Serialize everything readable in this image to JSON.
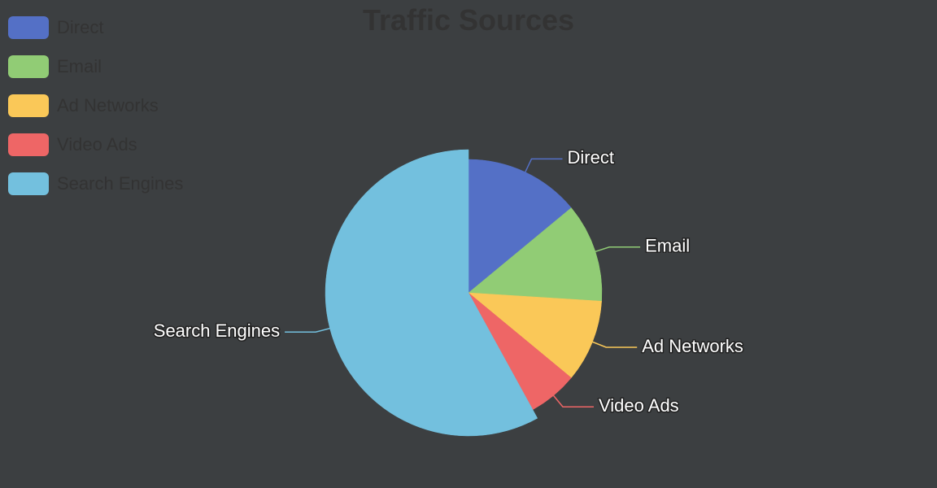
{
  "chart_data": {
    "type": "pie",
    "title": "Traffic Sources",
    "categories": [
      "Direct",
      "Email",
      "Ad Networks",
      "Video Ads",
      "Search Engines"
    ],
    "values": [
      14,
      12,
      10,
      6,
      58
    ],
    "colors": [
      "#5470c6",
      "#91cc75",
      "#fac858",
      "#ee6666",
      "#73c0de"
    ],
    "legend_position": "top-left"
  }
}
